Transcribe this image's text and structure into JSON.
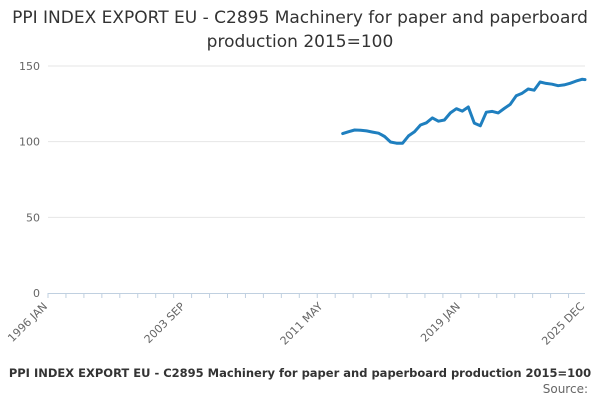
{
  "chart_data": {
    "type": "line",
    "title": "PPI INDEX EXPORT EU - C2895 Machinery for paper and paperboard production 2015=100",
    "xlabel": "",
    "ylabel": "",
    "ylim": [
      0,
      150
    ],
    "yticks": [
      0,
      50,
      100,
      150
    ],
    "xlim": [
      "1996-01",
      "2025-12"
    ],
    "xtick_labels": [
      "1996 JAN",
      "2003 SEP",
      "2011 MAY",
      "2019 JAN",
      "2025 DEC"
    ],
    "grid": true,
    "series": [
      {
        "name": "PPI INDEX EXPORT EU - C2895 Machinery for paper and paperboard production 2015=100",
        "x": [
          "2012-06",
          "2012-10",
          "2013-02",
          "2013-06",
          "2013-10",
          "2014-02",
          "2014-06",
          "2014-10",
          "2015-02",
          "2015-06",
          "2015-10",
          "2016-02",
          "2016-06",
          "2016-10",
          "2017-02",
          "2017-06",
          "2017-10",
          "2018-02",
          "2018-06",
          "2018-10",
          "2019-02",
          "2019-06",
          "2019-10",
          "2020-02",
          "2020-06",
          "2020-10",
          "2021-02",
          "2021-06",
          "2021-10",
          "2022-02",
          "2022-06",
          "2022-10",
          "2023-02",
          "2023-06",
          "2023-10",
          "2024-02",
          "2024-06",
          "2024-10",
          "2025-02",
          "2025-06",
          "2025-10",
          "2025-12"
        ],
        "y": [
          105.3,
          106.6,
          107.7,
          107.5,
          107.1,
          106.3,
          105.6,
          103.4,
          99.8,
          99.0,
          98.9,
          103.8,
          106.5,
          111.0,
          112.5,
          115.7,
          113.5,
          114.3,
          119.0,
          121.8,
          120.2,
          122.9,
          112.3,
          110.5,
          119.5,
          120.0,
          119.0,
          121.9,
          124.6,
          130.3,
          132.0,
          134.8,
          134.0,
          139.4,
          138.5,
          138.0,
          137.0,
          137.5,
          138.6,
          140.0,
          141.2,
          141.0
        ]
      }
    ],
    "line_color": "#1f7fbf",
    "footer_label": "PPI INDEX EXPORT EU - C2895 Machinery for paper and paperboard production 2015=100",
    "source_label": "Source:"
  }
}
